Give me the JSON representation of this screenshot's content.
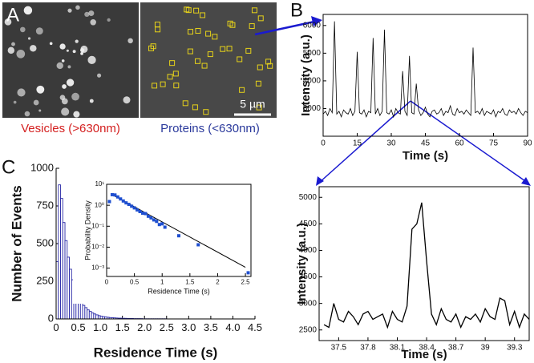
{
  "images": {
    "panel": "A",
    "scale_bar": "5 µm",
    "left_caption": "Vesicles (>630nm)",
    "right_caption": "Proteins (<630nm)"
  },
  "chart_data": [
    {
      "type": "line",
      "panel": "B",
      "xlabel": "Time (s)",
      "ylabel": "Intensity (a.u.)",
      "color": "#000000",
      "x": [
        0,
        1,
        2,
        3,
        4,
        5,
        6,
        7,
        8,
        9,
        10,
        11,
        12,
        13,
        14,
        15,
        16,
        17,
        18,
        19,
        20,
        21,
        22,
        23,
        24,
        25,
        26,
        27,
        28,
        29,
        30,
        31,
        32,
        33,
        34,
        35,
        36,
        37,
        38,
        39,
        40,
        41,
        42,
        43,
        44,
        45,
        46,
        47,
        48,
        49,
        50,
        51,
        52,
        53,
        54,
        55,
        56,
        57,
        58,
        59,
        60,
        61,
        62,
        63,
        64,
        65,
        66,
        67,
        68,
        69,
        70,
        71,
        72,
        73,
        74,
        75,
        76,
        77,
        78,
        79,
        80,
        81,
        82,
        83,
        84,
        85,
        86,
        87,
        88,
        89,
        90
      ],
      "values": [
        2800,
        2900,
        2750,
        3000,
        2850,
        6150,
        2800,
        2900,
        2700,
        2950,
        2850,
        2800,
        3000,
        2750,
        2900,
        5050,
        2850,
        2800,
        2950,
        2700,
        2900,
        2850,
        5550,
        2800,
        3000,
        2750,
        2900,
        5850,
        2850,
        2800,
        2950,
        2700,
        3000,
        2850,
        2800,
        4350,
        2900,
        2750,
        4900,
        2850,
        2800,
        3900,
        2950,
        2750,
        2850,
        3050,
        2800,
        2700,
        2900,
        2950,
        2800,
        2850,
        3000,
        2750,
        2900,
        2850,
        3100,
        2800,
        2750,
        3000,
        2850,
        2900,
        2800,
        2950,
        2850,
        2750,
        5200,
        2850,
        2900,
        2800,
        3000,
        2750,
        2900,
        2850,
        2800,
        2950,
        2700,
        2900,
        2850,
        3000,
        2800,
        2750,
        2950,
        2850,
        2900,
        2800,
        3000,
        2850,
        2750,
        2900,
        2850
      ],
      "xlim": [
        0,
        90
      ],
      "xticks": [
        0,
        15,
        30,
        45,
        60,
        75,
        90
      ],
      "ylim": [
        2000,
        6400
      ],
      "yticks": [
        3000,
        4000,
        5000,
        6000
      ]
    },
    {
      "type": "line",
      "xlabel": "Time (s)",
      "ylabel": "Intensity (a.u.)",
      "color": "#000000",
      "x": [
        37.35,
        37.4,
        37.45,
        37.5,
        37.55,
        37.6,
        37.65,
        37.7,
        37.75,
        37.8,
        37.85,
        37.9,
        37.95,
        38.0,
        38.05,
        38.1,
        38.15,
        38.2,
        38.25,
        38.3,
        38.35,
        38.4,
        38.45,
        38.5,
        38.55,
        38.6,
        38.65,
        38.7,
        38.75,
        38.8,
        38.85,
        38.9,
        38.95,
        39.0,
        39.05,
        39.1,
        39.15,
        39.2,
        39.25,
        39.3,
        39.35,
        39.4,
        39.45
      ],
      "values": [
        2600,
        2550,
        3000,
        2700,
        2650,
        2850,
        2750,
        2600,
        2800,
        2850,
        2700,
        2750,
        2800,
        2550,
        2850,
        2700,
        2650,
        2950,
        4400,
        4500,
        4900,
        3800,
        2800,
        2600,
        2900,
        2700,
        2650,
        2800,
        2550,
        2750,
        2700,
        2800,
        2650,
        2900,
        2750,
        2700,
        3100,
        3050,
        2600,
        2850,
        2550,
        2800,
        2700
      ],
      "xlim": [
        37.3,
        39.45
      ],
      "xticks": [
        37.5,
        37.8,
        38.1,
        38.4,
        38.7,
        39,
        39.3
      ],
      "ylim": [
        2300,
        5200
      ],
      "yticks": [
        2500,
        3000,
        3500,
        4000,
        4500,
        5000
      ]
    },
    {
      "type": "histogram",
      "panel": "C",
      "xlabel": "Residence Time (s)",
      "ylabel": "Number of Events",
      "color": "#2b2ba8",
      "bins": [
        0,
        0.05,
        0.1,
        0.15,
        0.2,
        0.25,
        0.3,
        0.35,
        0.4,
        0.45,
        0.5,
        0.55,
        0.6,
        0.65,
        0.7,
        0.75,
        0.8,
        0.85,
        0.9,
        0.95,
        1.0,
        1.05,
        1.1,
        1.15,
        1.2,
        1.25,
        1.3,
        1.35,
        1.4,
        1.45,
        1.5,
        1.55,
        1.6,
        1.65,
        1.7,
        1.75,
        1.8,
        1.85,
        1.9,
        1.95,
        2.0,
        2.05,
        2.1,
        2.15,
        2.2,
        2.25,
        2.3,
        2.35,
        2.4,
        2.45,
        2.5
      ],
      "values": [
        380,
        890,
        800,
        640,
        520,
        410,
        330,
        260,
        210,
        170,
        140,
        110,
        90,
        75,
        60,
        50,
        40,
        33,
        27,
        22,
        18,
        15,
        13,
        11,
        9,
        8,
        7,
        6,
        5,
        5,
        4,
        4,
        3,
        3,
        3,
        2,
        2,
        2,
        2,
        1,
        1,
        1,
        1,
        1,
        1,
        1,
        1,
        1,
        1,
        1
      ],
      "xlim": [
        0,
        4.5
      ],
      "xticks": [
        0,
        0.5,
        {
          "value": 1,
          "label": "1.0"
        },
        1.5,
        {
          "value": 2,
          "label": "2.0"
        },
        2.5,
        {
          "value": 3,
          "label": "3.0"
        },
        3.5,
        {
          "value": 4,
          "label": "4.0"
        },
        4.5
      ],
      "ylim": [
        0,
        1000
      ],
      "yticks": [
        0,
        250,
        500,
        750,
        1000
      ]
    },
    {
      "type": "scatter",
      "xlabel": "Residence Time (s)",
      "ylabel": "Probability Density",
      "color": "#1f4fd0",
      "ylog": true,
      "x": [
        0.05,
        0.1,
        0.15,
        0.2,
        0.25,
        0.3,
        0.35,
        0.4,
        0.45,
        0.5,
        0.55,
        0.6,
        0.65,
        0.7,
        0.75,
        0.8,
        0.85,
        0.9,
        0.95,
        1.0,
        1.05,
        1.3,
        1.65,
        2.55
      ],
      "values": [
        1.5,
        3.2,
        3.1,
        2.5,
        2.0,
        1.6,
        1.3,
        1.1,
        0.9,
        0.75,
        0.6,
        0.5,
        0.42,
        0.4,
        0.3,
        0.25,
        0.2,
        0.17,
        0.12,
        0.13,
        0.09,
        0.035,
        0.013,
        0.0006
      ],
      "fit": {
        "x": [
          0.1,
          2.5
        ],
        "values": [
          3.2,
          0.0011
        ],
        "color": "#000000"
      },
      "xlim": [
        0,
        2.6
      ],
      "xticks": [
        0,
        0.5,
        1,
        1.5,
        2,
        2.5
      ],
      "ylim": [
        0.0004,
        10
      ],
      "yticks": [
        {
          "value": 0.001,
          "label": "10⁻³"
        },
        {
          "value": 0.01,
          "label": "10⁻²"
        },
        {
          "value": 0.1,
          "label": "10⁻¹"
        },
        {
          "value": 1,
          "label": "10⁰"
        },
        {
          "value": 10,
          "label": "10¹"
        }
      ]
    }
  ]
}
